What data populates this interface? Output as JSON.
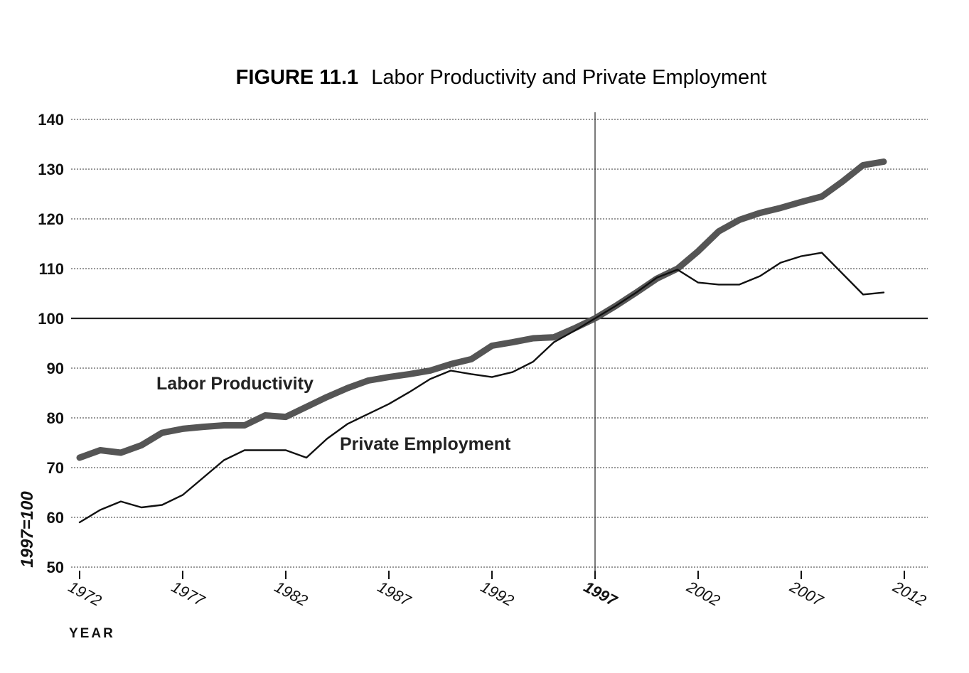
{
  "chart_data": {
    "type": "line",
    "title_figure": "FIGURE 11.1",
    "title": "Labor Productivity and Private Employment",
    "ylabel": "1997=100",
    "xlabel": "YEAR",
    "ylim": [
      50,
      140
    ],
    "xlim": [
      1972,
      2012
    ],
    "yticks": [
      "140",
      "130",
      "120",
      "110",
      "100",
      "90",
      "80",
      "70",
      "60",
      "50"
    ],
    "xticks": [
      "1972",
      "1977",
      "1982",
      "1987",
      "1992",
      "1997",
      "2002",
      "2007",
      "2012"
    ],
    "reference_lines": {
      "y": 100,
      "x": 1997
    },
    "grid": true,
    "series": [
      {
        "name": "Labor Productivity",
        "color": "#555555",
        "x": [
          1972,
          1973,
          1974,
          1975,
          1976,
          1977,
          1978,
          1979,
          1980,
          1981,
          1982,
          1983,
          1984,
          1985,
          1986,
          1987,
          1988,
          1989,
          1990,
          1991,
          1992,
          1993,
          1994,
          1995,
          1996,
          1997,
          1998,
          1999,
          2000,
          2001,
          2002,
          2003,
          2004,
          2005,
          2006,
          2007,
          2008,
          2009,
          2010,
          2011
        ],
        "y": [
          72,
          73.5,
          73,
          74.5,
          77,
          77.8,
          78.2,
          78.5,
          78.5,
          80.5,
          80.2,
          82.2,
          84.2,
          86,
          87.5,
          88.2,
          88.8,
          89.5,
          90.8,
          91.8,
          94.5,
          95.2,
          96,
          96.2,
          98,
          100,
          102.5,
          105.2,
          108,
          110,
          113.5,
          117.5,
          119.8,
          121.2,
          122.2,
          123.4,
          124.5,
          127.5,
          130.8,
          131.5
        ]
      },
      {
        "name": "Private Employment",
        "color": "#111111",
        "x": [
          1972,
          1973,
          1974,
          1975,
          1976,
          1977,
          1978,
          1979,
          1980,
          1981,
          1982,
          1983,
          1984,
          1985,
          1986,
          1987,
          1988,
          1989,
          1990,
          1991,
          1992,
          1993,
          1994,
          1995,
          1996,
          1997,
          1998,
          1999,
          2000,
          2001,
          2002,
          2003,
          2004,
          2005,
          2006,
          2007,
          2008,
          2009,
          2010,
          2011
        ],
        "y": [
          59,
          61.5,
          63.2,
          62,
          62.5,
          64.5,
          68,
          71.5,
          73.5,
          73.5,
          73.5,
          72,
          75.8,
          78.8,
          80.8,
          82.8,
          85.2,
          87.8,
          89.5,
          88.8,
          88.2,
          89.2,
          91.3,
          95.2,
          97.5,
          100,
          102.5,
          105.2,
          108.2,
          109.8,
          107.2,
          106.8,
          106.8,
          108.5,
          111.2,
          112.5,
          113.2,
          109,
          104.8,
          105.2
        ]
      }
    ]
  }
}
